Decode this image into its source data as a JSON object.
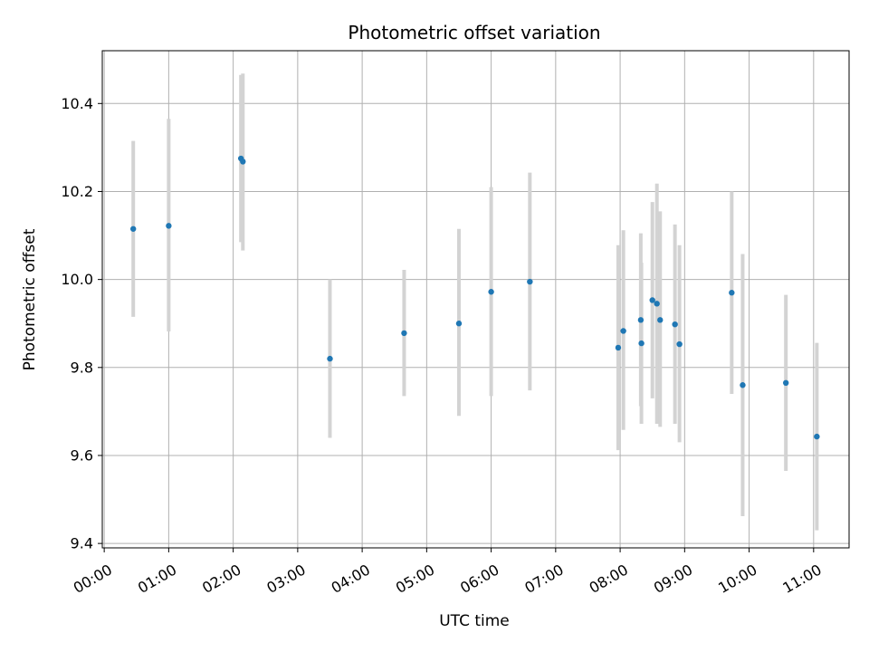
{
  "chart_data": {
    "type": "scatter",
    "title": "Photometric offset variation",
    "xlabel": "UTC time",
    "ylabel": "Photometric offset",
    "x_unit": "hours",
    "xlim": [
      -0.03,
      11.55
    ],
    "ylim": [
      9.39,
      10.52
    ],
    "grid": true,
    "point_color": "#1f77b4",
    "errorbar_color": "#d3d3d3",
    "x_ticks": [
      {
        "value": 0,
        "label": "00:00"
      },
      {
        "value": 1,
        "label": "01:00"
      },
      {
        "value": 2,
        "label": "02:00"
      },
      {
        "value": 3,
        "label": "03:00"
      },
      {
        "value": 4,
        "label": "04:00"
      },
      {
        "value": 5,
        "label": "05:00"
      },
      {
        "value": 6,
        "label": "06:00"
      },
      {
        "value": 7,
        "label": "07:00"
      },
      {
        "value": 8,
        "label": "08:00"
      },
      {
        "value": 9,
        "label": "09:00"
      },
      {
        "value": 10,
        "label": "10:00"
      },
      {
        "value": 11,
        "label": "11:00"
      }
    ],
    "y_ticks": [
      {
        "value": 9.4,
        "label": "9.4"
      },
      {
        "value": 9.6,
        "label": "9.6"
      },
      {
        "value": 9.8,
        "label": "9.8"
      },
      {
        "value": 10.0,
        "label": "10.0"
      },
      {
        "value": 10.2,
        "label": "10.2"
      },
      {
        "value": 10.4,
        "label": "10.4"
      }
    ],
    "points": [
      {
        "x": 0.45,
        "y": 10.115,
        "lo": 9.915,
        "hi": 10.315
      },
      {
        "x": 1.0,
        "y": 10.122,
        "lo": 9.882,
        "hi": 10.365
      },
      {
        "x": 2.12,
        "y": 10.275,
        "lo": 10.085,
        "hi": 10.465
      },
      {
        "x": 2.15,
        "y": 10.268,
        "lo": 10.066,
        "hi": 10.468
      },
      {
        "x": 3.5,
        "y": 9.82,
        "lo": 9.64,
        "hi": 10.0
      },
      {
        "x": 4.65,
        "y": 9.878,
        "lo": 9.735,
        "hi": 10.022
      },
      {
        "x": 5.5,
        "y": 9.9,
        "lo": 9.69,
        "hi": 10.115
      },
      {
        "x": 6.0,
        "y": 9.972,
        "lo": 9.735,
        "hi": 10.21
      },
      {
        "x": 6.6,
        "y": 9.995,
        "lo": 9.748,
        "hi": 10.243
      },
      {
        "x": 7.97,
        "y": 9.845,
        "lo": 9.612,
        "hi": 10.078
      },
      {
        "x": 8.05,
        "y": 9.883,
        "lo": 9.658,
        "hi": 10.112
      },
      {
        "x": 8.32,
        "y": 9.908,
        "lo": 9.712,
        "hi": 10.105
      },
      {
        "x": 8.33,
        "y": 9.855,
        "lo": 9.672,
        "hi": 10.038
      },
      {
        "x": 8.5,
        "y": 9.953,
        "lo": 9.73,
        "hi": 10.176
      },
      {
        "x": 8.57,
        "y": 9.945,
        "lo": 9.672,
        "hi": 10.218
      },
      {
        "x": 8.62,
        "y": 9.908,
        "lo": 9.665,
        "hi": 10.155
      },
      {
        "x": 8.85,
        "y": 9.898,
        "lo": 9.672,
        "hi": 10.125
      },
      {
        "x": 8.92,
        "y": 9.853,
        "lo": 9.63,
        "hi": 10.078
      },
      {
        "x": 9.73,
        "y": 9.97,
        "lo": 9.74,
        "hi": 10.2
      },
      {
        "x": 9.9,
        "y": 9.76,
        "lo": 9.462,
        "hi": 10.058
      },
      {
        "x": 10.57,
        "y": 9.765,
        "lo": 9.565,
        "hi": 9.965
      },
      {
        "x": 11.05,
        "y": 9.643,
        "lo": 9.43,
        "hi": 9.856
      }
    ]
  }
}
